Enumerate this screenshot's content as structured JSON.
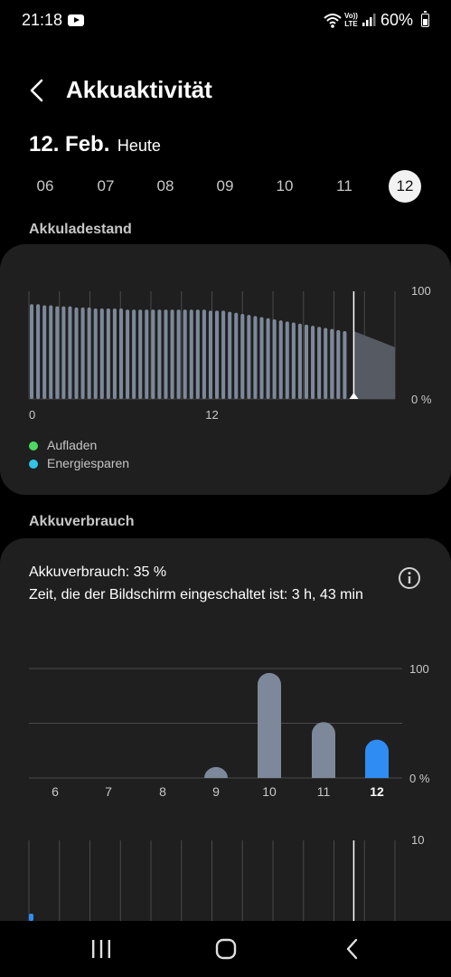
{
  "status": {
    "time": "21:18",
    "volte_line1": "Vo))",
    "volte_line2": "LTE",
    "battery": "60%",
    "icons": [
      "youtube-icon",
      "wifi-icon",
      "volte-icon",
      "signal-icon",
      "battery-icon"
    ]
  },
  "header": {
    "title": "Akkuaktivität",
    "back_icon": "chevron-left-icon"
  },
  "date": {
    "main": "12. Feb.",
    "sub": "Heute"
  },
  "days": [
    {
      "label": "06",
      "selected": false
    },
    {
      "label": "07",
      "selected": false
    },
    {
      "label": "08",
      "selected": false
    },
    {
      "label": "09",
      "selected": false
    },
    {
      "label": "10",
      "selected": false
    },
    {
      "label": "11",
      "selected": false
    },
    {
      "label": "12",
      "selected": true
    }
  ],
  "sections": {
    "level_title": "Akkuladestand",
    "usage_title": "Akkuverbrauch"
  },
  "legend": [
    {
      "label": "Aufladen",
      "color": "#4cd964"
    },
    {
      "label": "Energiesparen",
      "color": "#30c5e8"
    }
  ],
  "usage_info": {
    "line1": "Akkuverbrauch: 35 %",
    "line2": "Zeit, die der Bildschirm eingeschaltet ist: 3 h, 43 min",
    "info_icon": "info-icon"
  },
  "colors": {
    "bar": "#7d889a",
    "highlight": "#2f8cf2",
    "card": "#1f1f1f",
    "grid": "#4a4a4a"
  },
  "chart_data": [
    {
      "type": "bar",
      "title": "Akkuladestand",
      "x_ticks": [
        "0",
        "12"
      ],
      "y_ticks": [
        "100",
        "0 %"
      ],
      "ylim": [
        0,
        100
      ],
      "x_range_hours": [
        0,
        24
      ],
      "now_hour": 21.3,
      "values": [
        88,
        88,
        87,
        87,
        86,
        86,
        86,
        85,
        85,
        85,
        84,
        84,
        84,
        84,
        84,
        83,
        83,
        83,
        83,
        83,
        83,
        83,
        83,
        83,
        83,
        83,
        83,
        83,
        82,
        82,
        82,
        81,
        80,
        79,
        78,
        77,
        76,
        75,
        74,
        73,
        72,
        71,
        70,
        69,
        68,
        67,
        66,
        65,
        64,
        63
      ],
      "projection": [
        63,
        58,
        53,
        48
      ],
      "grid": "vertical"
    },
    {
      "type": "bar",
      "title": "Akkuverbrauch",
      "categories": [
        "6",
        "7",
        "8",
        "9",
        "10",
        "11",
        "12"
      ],
      "values": [
        0,
        0,
        0,
        10,
        96,
        51,
        35
      ],
      "highlight_index": 6,
      "y_ticks": [
        "100",
        "0 %"
      ],
      "ylim": [
        0,
        100
      ],
      "grid": "horizontal"
    },
    {
      "type": "bar",
      "title": "",
      "y_ticks": [
        "10"
      ],
      "values": [
        1
      ],
      "grid": "vertical"
    }
  ],
  "nav": {
    "recent_icon": "recent-apps-icon",
    "home_icon": "home-icon",
    "back_icon": "back-icon"
  }
}
